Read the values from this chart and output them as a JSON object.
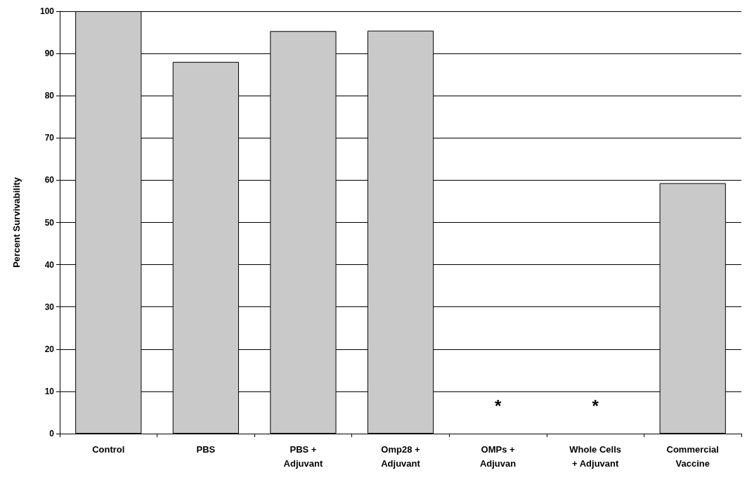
{
  "chart_data": {
    "type": "bar",
    "ylabel": "Percent Survivability",
    "categories": [
      "Control",
      "PBS",
      "PBS +\nAdjuvant",
      "Omp28 +\nAdjuvant",
      "OMPs +\nAdjuvan",
      "Whole Cells\n+ Adjuvant",
      "Commercial\nVaccine"
    ],
    "values": [
      100,
      88,
      95.3,
      95.4,
      0,
      0,
      59.3
    ],
    "value_labels": [
      null,
      null,
      null,
      null,
      "*",
      "*",
      null
    ],
    "color": "#c9c9c9",
    "ylim": [
      0,
      100
    ],
    "yticks": [
      0,
      10,
      20,
      30,
      40,
      50,
      60,
      70,
      80,
      90,
      100
    ],
    "grid": "y"
  }
}
